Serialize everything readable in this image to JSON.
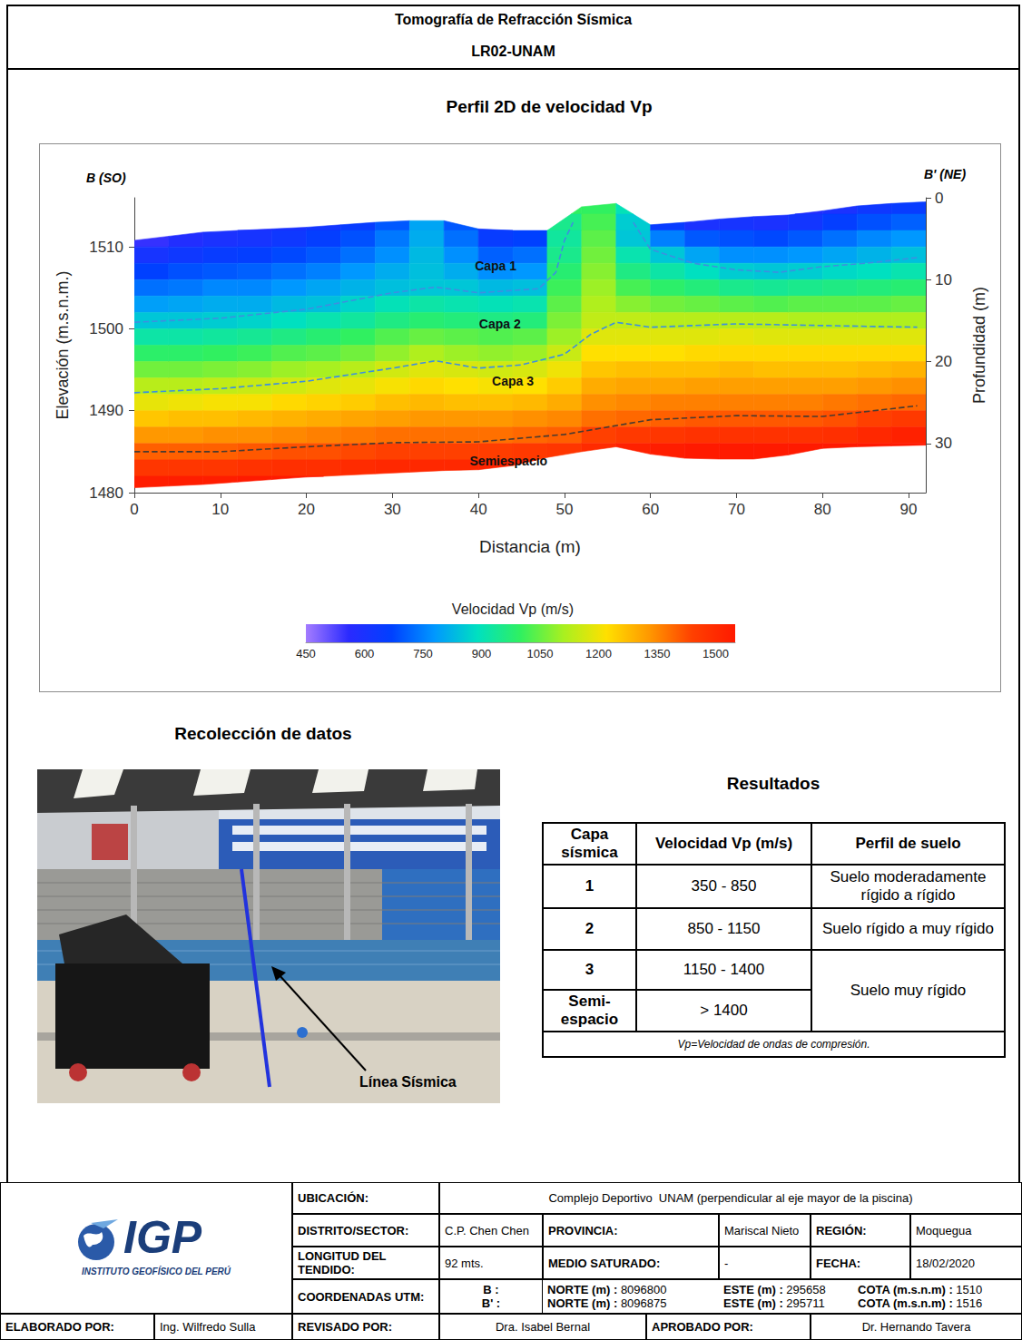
{
  "header": {
    "title": "Tomografía de Refracción Sísmica",
    "code": "LR02-UNAM"
  },
  "chart_data": {
    "type": "heatmap",
    "title": "Perfil 2D de velocidad Vp",
    "x_label": "Distancia (m)",
    "y_label": "Elevación (m.s.n.m.)",
    "y2_label": "Profundidad (m)",
    "xlim": [
      0,
      92
    ],
    "xticks": [
      0,
      10,
      20,
      30,
      40,
      50,
      60,
      70,
      80,
      90
    ],
    "ylim": [
      1480,
      1516
    ],
    "yticks": [
      1480,
      1490,
      1500,
      1510
    ],
    "y2lim": [
      36,
      0
    ],
    "y2ticks": [
      0,
      10,
      20,
      30
    ],
    "grid": false,
    "x_edges": [
      0,
      4,
      8,
      12,
      16,
      20,
      24,
      28,
      32,
      36,
      40,
      44,
      48,
      52,
      56,
      60,
      64,
      68,
      72,
      76,
      80,
      84,
      88,
      92
    ],
    "y_edges": [
      1516,
      1514,
      1512,
      1510,
      1508,
      1506,
      1504,
      1502,
      1500,
      1498,
      1496,
      1494,
      1492,
      1490,
      1488,
      1486,
      1484,
      1482,
      1480
    ],
    "velocity": [
      [
        null,
        null,
        550,
        610,
        670,
        730,
        790,
        850,
        920,
        990,
        1060,
        1130,
        1190,
        1260,
        1330,
        1400,
        1470,
        1540
      ],
      [
        null,
        null,
        580,
        630,
        690,
        740,
        800,
        850,
        920,
        990,
        1060,
        1130,
        1200,
        1270,
        1330,
        1400,
        1470,
        1540
      ],
      [
        null,
        null,
        600,
        650,
        700,
        760,
        810,
        860,
        930,
        1000,
        1070,
        1140,
        1210,
        1270,
        1340,
        1400,
        1470,
        1540
      ],
      [
        null,
        580,
        610,
        660,
        710,
        760,
        810,
        870,
        940,
        1010,
        1080,
        1150,
        1210,
        1280,
        1340,
        1410,
        1480,
        1550
      ],
      [
        null,
        600,
        630,
        680,
        730,
        780,
        830,
        890,
        960,
        1030,
        1100,
        1160,
        1230,
        1290,
        1350,
        1420,
        1490,
        1550
      ],
      [
        null,
        620,
        660,
        700,
        750,
        800,
        840,
        910,
        980,
        1040,
        1110,
        1180,
        1240,
        1300,
        1360,
        1420,
        1490,
        1550
      ],
      [
        null,
        650,
        690,
        730,
        780,
        820,
        870,
        930,
        1000,
        1060,
        1130,
        1190,
        1250,
        1310,
        1370,
        1430,
        1500,
        null
      ],
      [
        null,
        700,
        740,
        770,
        810,
        840,
        900,
        960,
        1030,
        1090,
        1160,
        1210,
        1270,
        1320,
        1380,
        1440,
        1510,
        null
      ],
      [
        null,
        800,
        810,
        830,
        840,
        850,
        920,
        980,
        1050,
        1120,
        1180,
        1230,
        1280,
        1330,
        1380,
        1440,
        1510,
        null
      ],
      [
        null,
        700,
        730,
        770,
        810,
        850,
        910,
        970,
        1040,
        1100,
        1170,
        1220,
        1270,
        1330,
        1380,
        1440,
        1510,
        null
      ],
      [
        null,
        620,
        650,
        710,
        770,
        830,
        900,
        960,
        1030,
        1090,
        1160,
        1210,
        1270,
        1330,
        1380,
        1450,
        1520,
        null
      ],
      [
        null,
        null,
        670,
        730,
        780,
        840,
        910,
        970,
        1040,
        1100,
        1170,
        1220,
        1280,
        1340,
        1390,
        1460,
        1530,
        null
      ],
      [
        1000,
        950,
        930,
        950,
        980,
        1010,
        1040,
        1070,
        1100,
        1150,
        1200,
        1250,
        1300,
        1350,
        1400,
        1470,
        null,
        null
      ],
      [
        1000,
        1020,
        1040,
        1060,
        1080,
        1100,
        1120,
        1140,
        1180,
        1220,
        1260,
        1300,
        1340,
        1380,
        1440,
        1500,
        null,
        null
      ],
      [
        900,
        860,
        850,
        910,
        960,
        1020,
        1080,
        1140,
        1180,
        1220,
        1270,
        1310,
        1350,
        1390,
        1460,
        1530,
        null,
        null
      ],
      [
        null,
        650,
        750,
        850,
        920,
        990,
        1060,
        1130,
        1180,
        1220,
        1270,
        1310,
        1360,
        1400,
        1470,
        1540,
        null,
        null
      ],
      [
        null,
        600,
        700,
        800,
        890,
        970,
        1050,
        1130,
        1180,
        1230,
        1270,
        1320,
        1360,
        1410,
        1480,
        1550,
        null,
        null
      ],
      [
        null,
        610,
        690,
        770,
        860,
        950,
        1040,
        1130,
        1190,
        1230,
        1280,
        1320,
        1360,
        1410,
        1480,
        1550,
        null,
        null
      ],
      [
        null,
        600,
        680,
        770,
        850,
        940,
        1030,
        1130,
        1180,
        1230,
        1270,
        1320,
        1360,
        1410,
        1480,
        1550,
        null,
        null
      ],
      [
        580,
        620,
        700,
        780,
        860,
        950,
        1040,
        1120,
        1180,
        1230,
        1270,
        1320,
        1360,
        1410,
        1480,
        1550,
        null,
        null
      ],
      [
        600,
        660,
        730,
        800,
        880,
        960,
        1040,
        1120,
        1180,
        1230,
        1270,
        1320,
        1370,
        1420,
        1490,
        1550,
        null,
        null
      ],
      [
        630,
        690,
        760,
        820,
        890,
        970,
        1040,
        1120,
        1180,
        1230,
        1280,
        1330,
        1380,
        1440,
        1510,
        1550,
        null,
        null
      ],
      [
        650,
        710,
        780,
        840,
        910,
        980,
        1050,
        1120,
        1180,
        1230,
        1290,
        1340,
        1390,
        1460,
        1530,
        1550,
        null,
        null
      ]
    ],
    "surface": [
      1510.8,
      1511.3,
      1511.8,
      1512.0,
      1512.2,
      1512.4,
      1512.7,
      1513.0,
      1513.2,
      1513.2,
      1512.2,
      1512.0,
      1512.0,
      1514.9,
      1515.3,
      1512.7,
      1513.0,
      1513.4,
      1513.7,
      1513.9,
      1514.4,
      1515.0,
      1515.3,
      1515.5
    ],
    "base": [
      1480.6,
      1480.8,
      1481.0,
      1481.3,
      1481.6,
      1481.9,
      1482.1,
      1482.3,
      1482.5,
      1482.7,
      1482.8,
      1483.3,
      1484.3,
      1485.0,
      1485.6,
      1484.7,
      1484.2,
      1484.1,
      1484.1,
      1484.6,
      1485.4,
      1485.6,
      1485.7,
      1485.8
    ],
    "boundaries": [
      {
        "x": [
          0,
          10,
          20,
          30,
          35,
          40,
          47,
          49,
          50,
          51,
          52,
          58,
          60,
          65,
          70,
          75,
          80,
          85,
          91
        ],
        "values": [
          1500.8,
          1501.3,
          1502.4,
          1504.4,
          1505.1,
          1504.4,
          1504.9,
          1506.9,
          1510.8,
          1513.0,
          null,
          1513.0,
          1509.7,
          1508.0,
          1507.2,
          1506.9,
          1507.6,
          1508.0,
          1508.7
        ],
        "color": "#3d8fe0",
        "line_style": "dashed"
      },
      {
        "x": [
          0,
          10,
          20,
          30,
          35,
          40,
          45,
          50,
          53,
          56,
          60,
          70,
          80,
          91
        ],
        "values": [
          1492.2,
          1492.7,
          1493.6,
          1495.2,
          1496.1,
          1495.2,
          1495.6,
          1496.9,
          1499.3,
          1500.8,
          1500.2,
          1500.6,
          1500.4,
          1500.2
        ],
        "color": "#3d8fe0",
        "line_style": "dashed"
      },
      {
        "x": [
          0,
          10,
          20,
          30,
          40,
          50,
          60,
          70,
          80,
          91
        ],
        "values": [
          1485.0,
          1485.0,
          1485.6,
          1486.1,
          1486.2,
          1487.1,
          1488.9,
          1489.4,
          1489.3,
          1490.6
        ],
        "color": "#4a3b30",
        "line_style": "dashed"
      }
    ],
    "annotations": [
      {
        "text": "Capa 1",
        "x": 42,
        "y": 1507.7
      },
      {
        "text": "Capa 2",
        "x": 42.5,
        "y": 1500.6
      },
      {
        "text": "Capa 3",
        "x": 44,
        "y": 1493.6
      },
      {
        "text": "Semiespacio",
        "x": 43.5,
        "y": 1483.9
      }
    ],
    "corner_labels": {
      "left": "B (SO)",
      "right": "B' (NE)"
    },
    "colorbar": {
      "title": "Velocidad Vp (m/s)",
      "range": [
        450,
        1550
      ],
      "ticks": [
        450,
        600,
        750,
        900,
        1050,
        1200,
        1350,
        1500
      ]
    }
  },
  "photo": {
    "title": "Recolección de datos",
    "label": "Línea Sísmica"
  },
  "results": {
    "title": "Resultados",
    "header": [
      "Capa sísmica",
      "Velocidad Vp (m/s)",
      "Perfil de suelo"
    ],
    "rows": [
      [
        "1",
        "350 - 850",
        "Suelo moderadamente rígido a rígido"
      ],
      [
        "2",
        "850 - 1150",
        "Suelo rígido a muy rígido"
      ],
      [
        "3",
        "1150 - 1400",
        "Suelo muy rígido"
      ],
      [
        "Semi-espacio",
        "> 1400",
        null
      ]
    ],
    "note": "Vp=Velocidad de ondas de compresión."
  },
  "footer": {
    "logo": {
      "text": "IGP",
      "subtitle": "INSTITUTO GEOFÍSICO DEL PERÚ"
    },
    "rows": [
      [
        "UBICACIÓN:",
        "Complejo Deportivo  UNAM (perpendicular al eje mayor de la piscina)"
      ],
      [
        "DISTRITO/SECTOR:",
        "C.P. Chen Chen",
        "PROVINCIA:",
        "Mariscal Nieto",
        "REGIÓN:",
        "Moquegua"
      ],
      [
        "LONGITUD DEL TENDIDO:",
        "92 mts.",
        "MEDIO SATURADO:",
        "-",
        "FECHA:",
        "18/02/2020"
      ],
      [
        "COORDENADAS UTM:",
        [
          "B :",
          "B' :"
        ],
        [
          "NORTE (m) : 8096800",
          "NORTE (m) : 8096875"
        ],
        [
          "ESTE (m) : 295658",
          "ESTE (m) : 295711"
        ],
        [
          "COTA (m.s.n.m) : 1510",
          "COTA (m.s.n.m) : 1516"
        ]
      ],
      [
        "ELABORADO POR:",
        "Ing. Wilfredo Sulla",
        "REVISADO POR:",
        "Dra. Isabel Bernal",
        "APROBADO POR:",
        "Dr. Hernando Tavera"
      ]
    ]
  }
}
